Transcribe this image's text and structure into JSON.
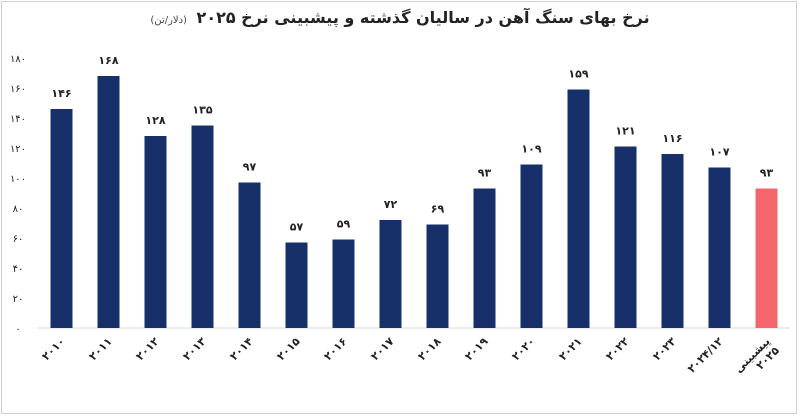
{
  "chart_data": {
    "type": "bar",
    "title": "نرخ بهای سنگ آهن در سالیان گذشته و پیشبینی نرخ ۲۰۲۵",
    "unit_label": "(دلار/تن)",
    "categories": [
      "۲۰۱۰",
      "۲۰۱۱",
      "۲۰۱۲",
      "۲۰۱۳",
      "۲۰۱۴",
      "۲۰۱۵",
      "۲۰۱۶",
      "۲۰۱۷",
      "۲۰۱۸",
      "۲۰۱۹",
      "۲۰۲۰",
      "۲۰۲۱",
      "۲۰۲۲",
      "۲۰۲۳",
      "۲۰۲۴/۱۲",
      "پیشبینی ۲۰۲۵"
    ],
    "values": [
      146,
      168,
      128,
      135,
      97,
      57,
      59,
      72,
      69,
      93,
      109,
      159,
      121,
      116,
      107,
      93
    ],
    "value_labels": [
      "۱۴۶",
      "۱۶۸",
      "۱۲۸",
      "۱۳۵",
      "۹۷",
      "۵۷",
      "۵۹",
      "۷۲",
      "۶۹",
      "۹۳",
      "۱۰۹",
      "۱۵۹",
      "۱۲۱",
      "۱۱۶",
      "۱۰۷",
      "۹۳"
    ],
    "yticks": [
      0,
      20,
      40,
      60,
      80,
      100,
      120,
      140,
      160,
      180
    ],
    "ytick_labels": [
      "۰",
      "۲۰",
      "۴۰",
      "۶۰",
      "۸۰",
      "۱۰۰",
      "۱۲۰",
      "۱۴۰",
      "۱۶۰",
      "۱۸۰"
    ],
    "ylim": [
      0,
      180
    ],
    "grid": false,
    "colors": {
      "bar": "#17306a",
      "forecast_bar": "#f4666b"
    }
  }
}
